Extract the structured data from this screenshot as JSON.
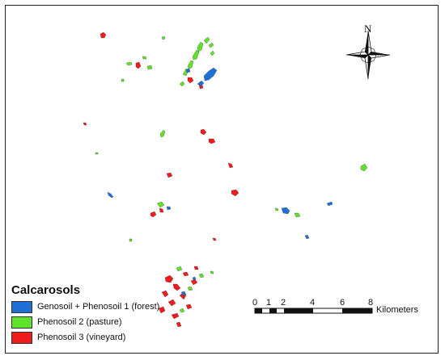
{
  "legend": {
    "title": "Calcarosols",
    "items": [
      {
        "label": "Genosoil + Phenosoil 1 (forest)",
        "color": "#1f6fd6"
      },
      {
        "label": "Phenosoil 2 (pasture)",
        "color": "#5ee32a"
      },
      {
        "label": "Phenosoil 3 (vineyard)",
        "color": "#ee1c1c"
      }
    ]
  },
  "scale_bar": {
    "unit": "Kilometers",
    "ticks": [
      "0",
      "1",
      "2",
      "4",
      "6",
      "8"
    ]
  },
  "north_arrow": {
    "label": "N",
    "icon": "north-arrow-icon"
  },
  "colors": {
    "forest": "#1f6fd6",
    "pasture": "#5ee32a",
    "vineyard": "#ee1c1c"
  }
}
